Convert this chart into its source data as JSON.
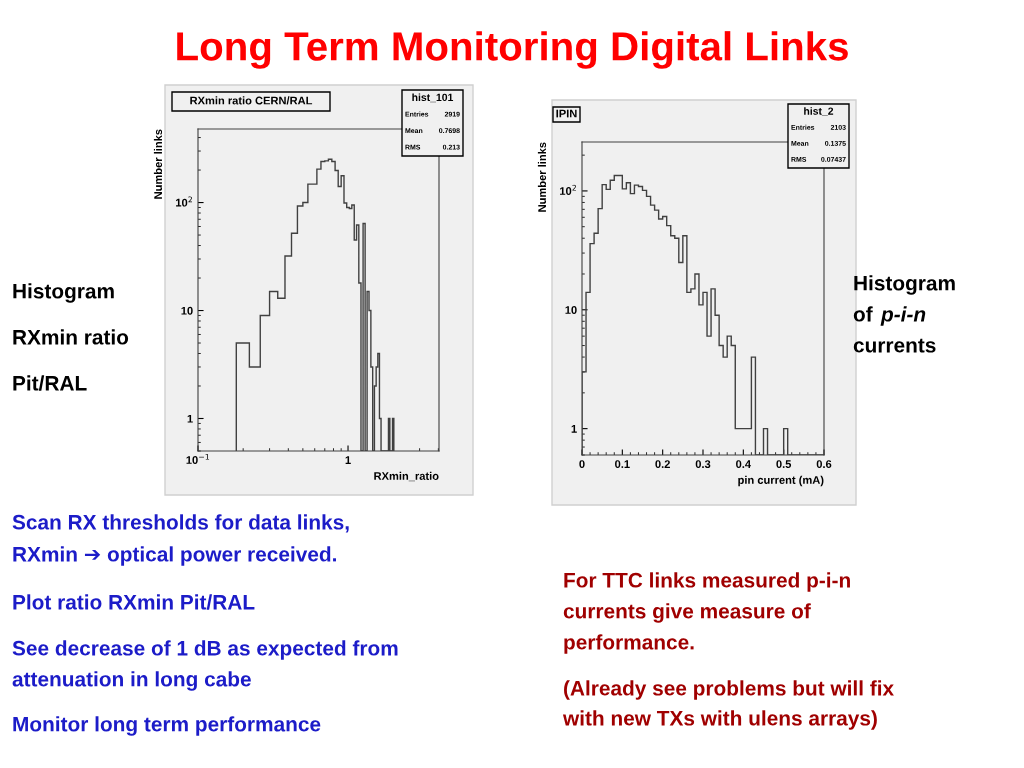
{
  "chart_data": [
    {
      "type": "histogram",
      "title": "RXmin ratio CERN/RAL",
      "xlabel": "RXmin_ratio",
      "ylabel": "Number links",
      "log": "xy",
      "color": "#404040",
      "bins": [
        0.18,
        0.22,
        0.26,
        0.3,
        0.34,
        0.38,
        0.42,
        0.46,
        0.5,
        0.54,
        0.58,
        0.62,
        0.66,
        0.7,
        0.74,
        0.78,
        0.82,
        0.86,
        0.9,
        0.94,
        0.98,
        1.02,
        1.06,
        1.1,
        1.14,
        1.18,
        1.22,
        1.26,
        1.3,
        1.34,
        1.38,
        1.42,
        1.46,
        1.5,
        1.54,
        1.58,
        1.62,
        1.66,
        1.7,
        1.74,
        1.78,
        1.82,
        1.86,
        1.9,
        1.94,
        1.98,
        2.02
      ],
      "values": [
        5,
        3,
        9,
        15,
        13,
        32,
        52,
        93,
        100,
        148,
        148,
        204,
        240,
        243,
        252,
        240,
        198,
        141,
        177,
        99,
        90,
        88,
        95,
        45,
        62,
        18,
        null,
        64,
        null,
        15,
        10,
        3,
        null,
        2,
        3,
        4,
        1,
        null,
        null,
        null,
        null,
        null,
        1,
        null,
        null,
        1
      ],
      "xlim": [
        0.1,
        4.04
      ],
      "ylim": [
        0.5,
        480
      ],
      "xticks": [
        {
          "value": 0.1,
          "label": "10$^{−1}$"
        },
        1
      ],
      "yticks": [
        1,
        10,
        {
          "value": 100,
          "label": "10$^{2}$"
        }
      ],
      "grid": false,
      "legend": false,
      "annotations": [
        "hist_101",
        "Entries",
        "2919",
        "Mean",
        "0.7698",
        "RMS",
        "0.213",
        "Long Term Monitoring Digital Links",
        "Histogram",
        "RXmin ratio",
        "Pit/RAL",
        "Scan RX thresholds for data links,",
        "RXmin ➔ optical power received.",
        "Plot ratio RXmin Pit/RAL",
        "See decrease of 1 dB as expected from",
        "attenuation in long cabe",
        "Monitor long term performance"
      ]
    },
    {
      "type": "histogram",
      "title": "IPIN",
      "xlabel": "pin current (mA)",
      "ylabel": "Number links",
      "log": "y",
      "color": "#404040",
      "bins": [
        0,
        0.01,
        0.02,
        0.03,
        0.04,
        0.05,
        0.06,
        0.07,
        0.08,
        0.09,
        0.1,
        0.11,
        0.12,
        0.13,
        0.14,
        0.15,
        0.16,
        0.17,
        0.18,
        0.19,
        0.2,
        0.21,
        0.22,
        0.23,
        0.24,
        0.25,
        0.26,
        0.27,
        0.28,
        0.29,
        0.3,
        0.31,
        0.32,
        0.33,
        0.34,
        0.35,
        0.36,
        0.37,
        0.38,
        0.39,
        0.4,
        0.41,
        0.42,
        0.43,
        0.44,
        0.45,
        0.46,
        0.47,
        0.48,
        0.49,
        0.5,
        0.51,
        0.52,
        0.53,
        0.54,
        0.55,
        0.56,
        0.57,
        0.58,
        0.59,
        0.6
      ],
      "values": [
        3,
        14,
        36,
        44,
        71,
        113,
        103,
        123,
        135,
        135,
        104,
        117,
        95,
        112,
        109,
        101,
        90,
        76,
        69,
        58,
        61,
        51,
        42,
        40,
        25,
        42,
        14,
        15,
        20,
        11,
        14,
        6,
        15,
        9,
        5,
        4,
        6,
        5,
        1,
        1,
        1,
        1,
        4,
        null,
        null,
        1,
        null,
        null,
        null,
        null,
        1,
        null,
        null,
        null,
        null,
        null,
        null,
        null,
        null,
        null
      ],
      "xlim": [
        0,
        0.6
      ],
      "ylim": [
        0.6,
        258
      ],
      "xticks": [
        0,
        0.1,
        0.2,
        0.3,
        0.4,
        0.5,
        0.6
      ],
      "yticks": [
        1,
        10,
        {
          "value": 100,
          "label": "10$^{2}$"
        }
      ],
      "grid": false,
      "legend": false,
      "annotations": [
        "hist_2",
        "Entries",
        "2103",
        "Mean",
        "0.1375",
        "RMS",
        "0.07437",
        "Histogram",
        "of",
        "p-i-n",
        "currents",
        "For TTC links measured p-i-n",
        "currents give measure of",
        "performance.",
        "(Already see problems but will fix",
        "with new TXs with ulens arrays)"
      ]
    }
  ]
}
